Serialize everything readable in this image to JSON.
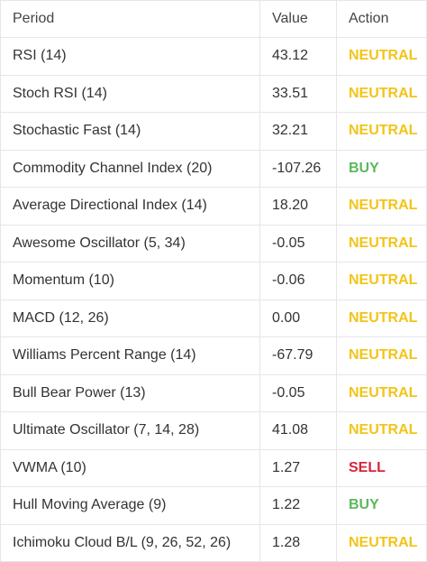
{
  "headers": {
    "period": "Period",
    "value": "Value",
    "action": "Action"
  },
  "rows": [
    {
      "period": "RSI (14)",
      "value": "43.12",
      "action": "NEUTRAL"
    },
    {
      "period": "Stoch RSI (14)",
      "value": "33.51",
      "action": "NEUTRAL"
    },
    {
      "period": "Stochastic Fast (14)",
      "value": "32.21",
      "action": "NEUTRAL"
    },
    {
      "period": "Commodity Channel Index (20)",
      "value": "-107.26",
      "action": "BUY"
    },
    {
      "period": "Average Directional Index (14)",
      "value": "18.20",
      "action": "NEUTRAL"
    },
    {
      "period": "Awesome Oscillator (5, 34)",
      "value": "-0.05",
      "action": "NEUTRAL"
    },
    {
      "period": "Momentum (10)",
      "value": "-0.06",
      "action": "NEUTRAL"
    },
    {
      "period": "MACD (12, 26)",
      "value": "0.00",
      "action": "NEUTRAL"
    },
    {
      "period": "Williams Percent Range (14)",
      "value": "-67.79",
      "action": "NEUTRAL"
    },
    {
      "period": "Bull Bear Power (13)",
      "value": "-0.05",
      "action": "NEUTRAL"
    },
    {
      "period": "Ultimate Oscillator (7, 14, 28)",
      "value": "41.08",
      "action": "NEUTRAL"
    },
    {
      "period": "VWMA (10)",
      "value": "1.27",
      "action": "SELL"
    },
    {
      "period": "Hull Moving Average (9)",
      "value": "1.22",
      "action": "BUY"
    },
    {
      "period": "Ichimoku Cloud B/L (9, 26, 52, 26)",
      "value": "1.28",
      "action": "NEUTRAL"
    }
  ],
  "colors": {
    "neutral": "#f2c418",
    "buy": "#5cb85c",
    "sell": "#d9233a",
    "border": "#e6e6e6"
  }
}
